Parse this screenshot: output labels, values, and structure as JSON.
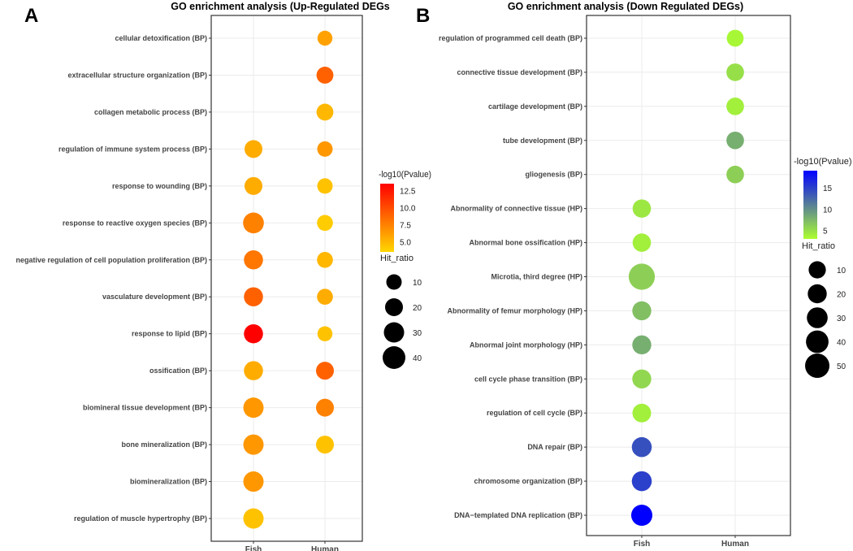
{
  "chart_data": [
    {
      "type": "scatter",
      "panel_label": "A",
      "title": "GO enrichment analysis (Up-Regulated DEGs",
      "x_categories": [
        "Fish",
        "Human"
      ],
      "color_legend": {
        "title": "-log10(Pvalue)",
        "ticks": [
          "12.5",
          "10.0",
          "7.5",
          "5.0"
        ],
        "tick_values": [
          12.5,
          10,
          7.5,
          5
        ],
        "range": [
          3.5,
          13.5
        ],
        "low_color": "#FFD700",
        "high_color": "#FF0000"
      },
      "size_legend": {
        "title": "Hit_ratio",
        "ticks": [
          "10",
          "20",
          "30",
          "40"
        ],
        "tick_values": [
          10,
          20,
          30,
          40
        ]
      },
      "terms": [
        {
          "label": "cellular detoxification (BP)",
          "points": [
            {
              "x": "Human",
              "pvalue": 6,
              "hit_ratio": 8
            }
          ]
        },
        {
          "label": "extracellular structure organization (BP)",
          "points": [
            {
              "x": "Human",
              "pvalue": 9,
              "hit_ratio": 16
            }
          ]
        },
        {
          "label": "collagen metabolic process (BP)",
          "points": [
            {
              "x": "Human",
              "pvalue": 5,
              "hit_ratio": 16
            }
          ]
        },
        {
          "label": "regulation of immune system process (BP)",
          "points": [
            {
              "x": "Fish",
              "pvalue": 5.5,
              "hit_ratio": 20
            },
            {
              "x": "Human",
              "pvalue": 6.5,
              "hit_ratio": 10
            }
          ]
        },
        {
          "label": "response to wounding (BP)",
          "points": [
            {
              "x": "Fish",
              "pvalue": 5.5,
              "hit_ratio": 20
            },
            {
              "x": "Human",
              "pvalue": 4.5,
              "hit_ratio": 10
            }
          ]
        },
        {
          "label": "response to reactive oxygen species (BP)",
          "points": [
            {
              "x": "Fish",
              "pvalue": 7.5,
              "hit_ratio": 32
            },
            {
              "x": "Human",
              "pvalue": 4,
              "hit_ratio": 12
            }
          ]
        },
        {
          "label": "negative regulation of cell population proliferation (BP)",
          "points": [
            {
              "x": "Fish",
              "pvalue": 8,
              "hit_ratio": 25
            },
            {
              "x": "Human",
              "pvalue": 5,
              "hit_ratio": 12
            }
          ]
        },
        {
          "label": "vasculature development (BP)",
          "points": [
            {
              "x": "Fish",
              "pvalue": 9,
              "hit_ratio": 25
            },
            {
              "x": "Human",
              "pvalue": 5.5,
              "hit_ratio": 12
            }
          ]
        },
        {
          "label": "response to lipid (BP)",
          "points": [
            {
              "x": "Fish",
              "pvalue": 13.5,
              "hit_ratio": 25
            },
            {
              "x": "Human",
              "pvalue": 4.5,
              "hit_ratio": 8
            }
          ]
        },
        {
          "label": "ossification (BP)",
          "points": [
            {
              "x": "Fish",
              "pvalue": 5.5,
              "hit_ratio": 25
            },
            {
              "x": "Human",
              "pvalue": 9,
              "hit_ratio": 20
            }
          ]
        },
        {
          "label": "biomineral tissue development (BP)",
          "points": [
            {
              "x": "Fish",
              "pvalue": 6.5,
              "hit_ratio": 30
            },
            {
              "x": "Human",
              "pvalue": 7.5,
              "hit_ratio": 20
            }
          ]
        },
        {
          "label": "bone mineralization (BP)",
          "points": [
            {
              "x": "Fish",
              "pvalue": 6.5,
              "hit_ratio": 30
            },
            {
              "x": "Human",
              "pvalue": 4.5,
              "hit_ratio": 20
            }
          ]
        },
        {
          "label": "biomineralization (BP)",
          "points": [
            {
              "x": "Fish",
              "pvalue": 6.5,
              "hit_ratio": 30
            }
          ]
        },
        {
          "label": "regulation of muscle hypertrophy (BP)",
          "points": [
            {
              "x": "Fish",
              "pvalue": 4.5,
              "hit_ratio": 30
            }
          ]
        }
      ]
    },
    {
      "type": "scatter",
      "panel_label": "B",
      "title": "GO enrichment analysis (Down Regulated DEGs)",
      "x_categories": [
        "Fish",
        "Human"
      ],
      "color_legend": {
        "title": "-log10(Pvalue)",
        "ticks": [
          "15",
          "10",
          "5"
        ],
        "tick_values": [
          15,
          10,
          5
        ],
        "range": [
          3,
          19
        ],
        "low_color": "#ADFF2F",
        "high_color": "#0000FF"
      },
      "size_legend": {
        "title": "Hit_ratio",
        "ticks": [
          "10",
          "20",
          "30",
          "40",
          "50"
        ],
        "tick_values": [
          10,
          20,
          30,
          40,
          50
        ]
      },
      "terms": [
        {
          "label": "regulation of programmed cell death (BP)",
          "points": [
            {
              "x": "Human",
              "pvalue": 3.5,
              "hit_ratio": 8
            }
          ]
        },
        {
          "label": "connective tissue development (BP)",
          "points": [
            {
              "x": "Human",
              "pvalue": 5,
              "hit_ratio": 12
            }
          ]
        },
        {
          "label": "cartilage development (BP)",
          "points": [
            {
              "x": "Human",
              "pvalue": 4,
              "hit_ratio": 12
            }
          ]
        },
        {
          "label": "tube development (BP)",
          "points": [
            {
              "x": "Human",
              "pvalue": 8,
              "hit_ratio": 12
            }
          ]
        },
        {
          "label": "gliogenesis (BP)",
          "points": [
            {
              "x": "Human",
              "pvalue": 6,
              "hit_ratio": 12
            }
          ]
        },
        {
          "label": "Abnormality of connective tissue (HP)",
          "points": [
            {
              "x": "Fish",
              "pvalue": 4.5,
              "hit_ratio": 16
            }
          ]
        },
        {
          "label": "Abnormal bone ossification (HP)",
          "points": [
            {
              "x": "Fish",
              "pvalue": 4,
              "hit_ratio": 16
            }
          ]
        },
        {
          "label": "Microtia, third degree (HP)",
          "points": [
            {
              "x": "Fish",
              "pvalue": 6,
              "hit_ratio": 60
            }
          ]
        },
        {
          "label": "Abnormality of femur morphology (HP)",
          "points": [
            {
              "x": "Fish",
              "pvalue": 7,
              "hit_ratio": 20
            }
          ]
        },
        {
          "label": "Abnormal joint morphology (HP)",
          "points": [
            {
              "x": "Fish",
              "pvalue": 8,
              "hit_ratio": 20
            }
          ]
        },
        {
          "label": "cell cycle phase transition (BP)",
          "points": [
            {
              "x": "Fish",
              "pvalue": 5.5,
              "hit_ratio": 20
            }
          ]
        },
        {
          "label": "regulation of cell cycle (BP)",
          "points": [
            {
              "x": "Fish",
              "pvalue": 4,
              "hit_ratio": 18
            }
          ]
        },
        {
          "label": "DNA repair (BP)",
          "points": [
            {
              "x": "Fish",
              "pvalue": 14,
              "hit_ratio": 25
            }
          ]
        },
        {
          "label": "chromosome organization (BP)",
          "points": [
            {
              "x": "Fish",
              "pvalue": 15,
              "hit_ratio": 25
            }
          ]
        },
        {
          "label": "DNA−templated DNA replication (BP)",
          "points": [
            {
              "x": "Fish",
              "pvalue": 19,
              "hit_ratio": 32
            }
          ]
        }
      ]
    }
  ]
}
